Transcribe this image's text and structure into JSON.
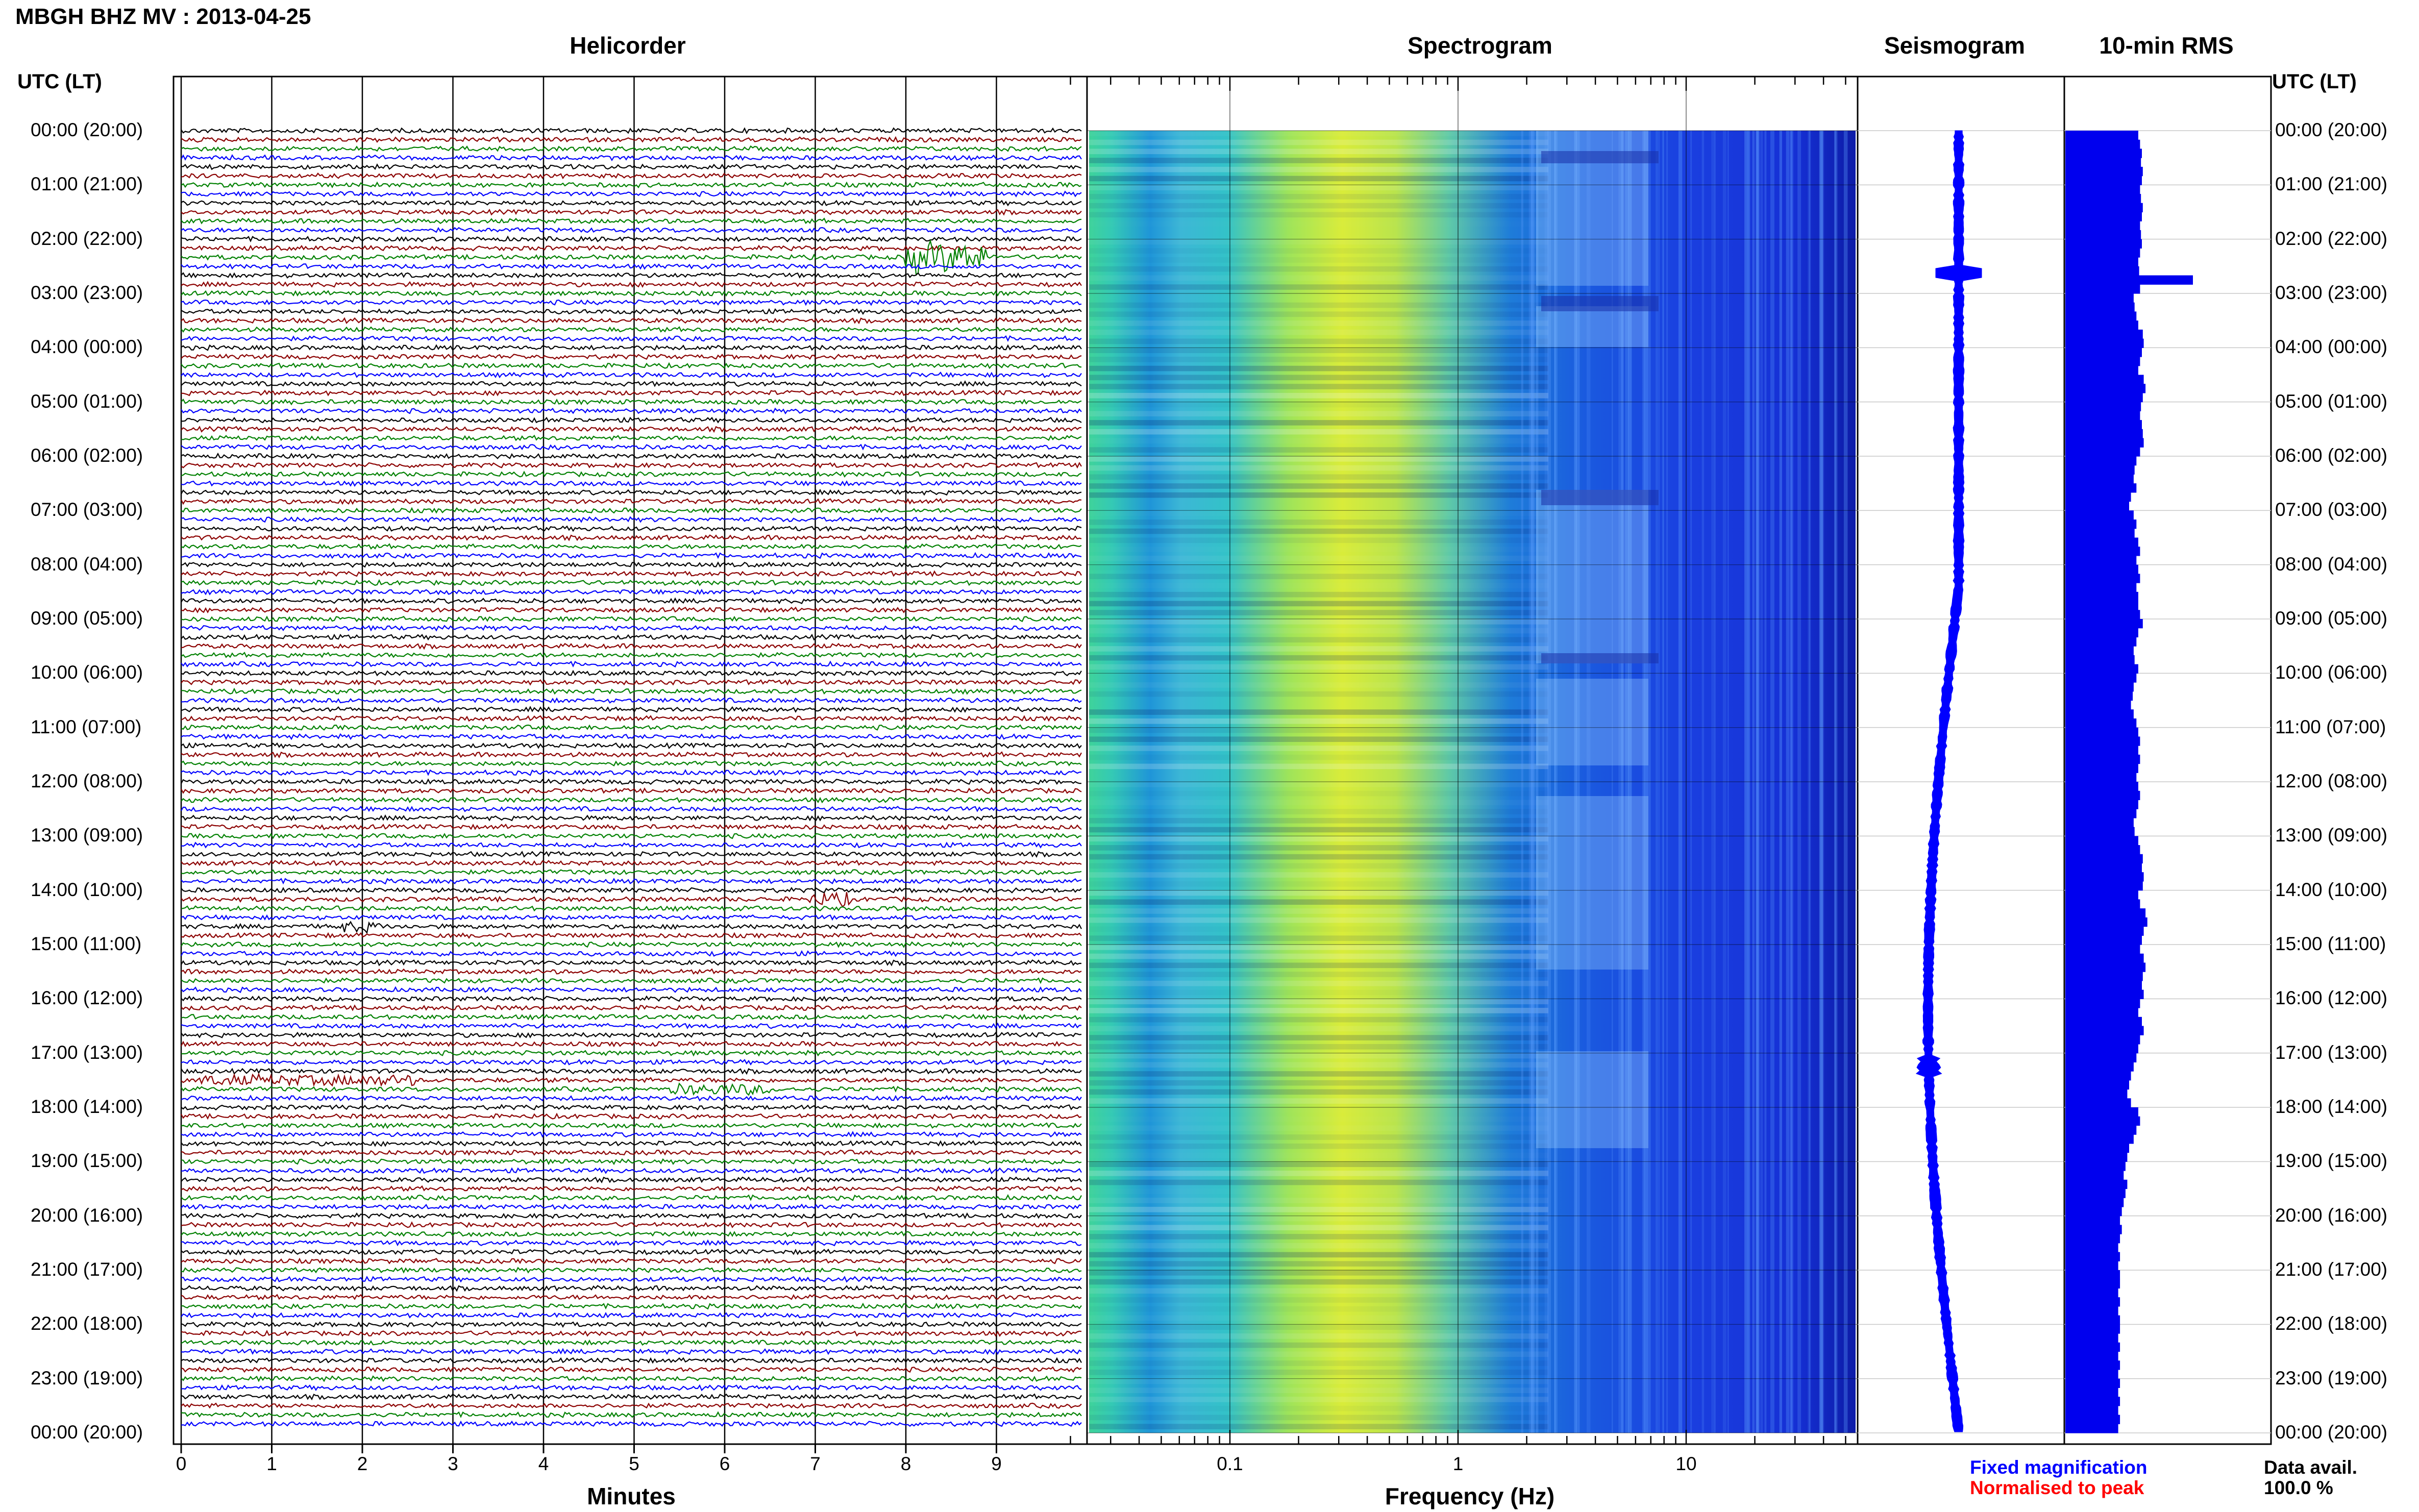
{
  "header": {
    "station_title": "MBGH BHZ MV : 2013-04-25"
  },
  "panels": {
    "helicorder": "Helicorder",
    "spectrogram": "Spectrogram",
    "seismogram": "Seismogram",
    "rms": "10-min RMS"
  },
  "axes": {
    "time_header_left": "UTC (LT)",
    "time_header_right": "UTC (LT)",
    "helicorder_xlabel": "Minutes",
    "spectrogram_xlabel": "Frequency (Hz)"
  },
  "legend": {
    "fixed": "Fixed magnification",
    "normalised": "Normalised to peak",
    "data_avail_label": "Data avail.",
    "data_avail_value": "100.0 %"
  },
  "colors": {
    "trace_cycle": [
      "#000000",
      "#8b0000",
      "#008000",
      "#0000ff"
    ],
    "rms_bar": "#0000ee",
    "seismogram": "#0000ff",
    "legend_fixed": "#0000ff",
    "legend_normalised": "#ff0000"
  },
  "chart_data": [
    {
      "type": "line",
      "name": "helicorder",
      "title": "Helicorder",
      "xlabel": "Minutes",
      "xlim": [
        0,
        10
      ],
      "x_ticks": [
        "0",
        "1",
        "2",
        "3",
        "4",
        "5",
        "6",
        "7",
        "8",
        "9"
      ],
      "y_tick_labels": [
        "00:00 (20:00)",
        "01:00 (21:00)",
        "02:00 (22:00)",
        "03:00 (23:00)",
        "04:00 (00:00)",
        "05:00 (01:00)",
        "06:00 (02:00)",
        "07:00 (03:00)",
        "08:00 (04:00)",
        "09:00 (05:00)",
        "10:00 (06:00)",
        "11:00 (07:00)",
        "12:00 (08:00)",
        "13:00 (09:00)",
        "14:00 (10:00)",
        "15:00 (11:00)",
        "16:00 (12:00)",
        "17:00 (13:00)",
        "18:00 (14:00)",
        "19:00 (15:00)",
        "20:00 (16:00)",
        "21:00 (17:00)",
        "22:00 (18:00)",
        "23:00 (19:00)",
        "00:00 (20:00)"
      ],
      "rows": 144,
      "minutes_per_row": 10,
      "events": [
        {
          "row": 14,
          "minute_start": 8.0,
          "minute_end": 8.9,
          "amplitude": 7
        },
        {
          "row": 85,
          "minute_start": 6.9,
          "minute_end": 7.4,
          "amplitude": 3
        },
        {
          "row": 88,
          "minute_start": 1.7,
          "minute_end": 2.2,
          "amplitude": 2.5
        },
        {
          "row": 105,
          "minute_start": 0.2,
          "minute_end": 2.6,
          "amplitude": 2.5
        },
        {
          "row": 106,
          "minute_start": 5.4,
          "minute_end": 6.5,
          "amplitude": 2.5
        }
      ]
    },
    {
      "type": "heatmap",
      "name": "spectrogram",
      "title": "Spectrogram",
      "xlabel": "Frequency (Hz)",
      "xscale": "log",
      "xlim": [
        0.02,
        50
      ],
      "x_ticks": [
        0.1,
        1,
        10
      ],
      "x_tick_labels": [
        "0.1",
        "1",
        "10"
      ],
      "ylim_hours": [
        0,
        24
      ]
    },
    {
      "type": "line",
      "name": "seismogram",
      "title": "Seismogram",
      "ylim_hours": [
        0,
        24
      ]
    },
    {
      "type": "bar",
      "name": "rms",
      "title": "10-min RMS",
      "orientation": "horizontal",
      "bins": 144,
      "values": [
        0.8,
        0.82,
        0.84,
        0.83,
        0.85,
        0.84,
        0.82,
        0.83,
        0.85,
        0.84,
        0.82,
        0.83,
        0.84,
        0.82,
        0.8,
        0.81,
        1.4,
        0.82,
        0.75,
        0.76,
        0.78,
        0.8,
        0.85,
        0.86,
        0.84,
        0.82,
        0.8,
        0.86,
        0.88,
        0.85,
        0.83,
        0.82,
        0.84,
        0.85,
        0.86,
        0.82,
        0.78,
        0.76,
        0.75,
        0.78,
        0.72,
        0.7,
        0.75,
        0.78,
        0.76,
        0.8,
        0.82,
        0.78,
        0.8,
        0.82,
        0.78,
        0.8,
        0.8,
        0.82,
        0.85,
        0.8,
        0.78,
        0.75,
        0.76,
        0.8,
        0.78,
        0.75,
        0.74,
        0.72,
        0.75,
        0.78,
        0.8,
        0.82,
        0.8,
        0.82,
        0.8,
        0.78,
        0.8,
        0.82,
        0.8,
        0.78,
        0.75,
        0.76,
        0.8,
        0.82,
        0.85,
        0.84,
        0.86,
        0.85,
        0.8,
        0.82,
        0.88,
        0.9,
        0.86,
        0.84,
        0.82,
        0.86,
        0.88,
        0.85,
        0.84,
        0.86,
        0.82,
        0.8,
        0.84,
        0.86,
        0.82,
        0.8,
        0.78,
        0.75,
        0.72,
        0.7,
        0.68,
        0.72,
        0.8,
        0.82,
        0.78,
        0.75,
        0.7,
        0.68,
        0.66,
        0.64,
        0.68,
        0.66,
        0.64,
        0.62,
        0.6,
        0.62,
        0.6,
        0.58,
        0.6,
        0.58,
        0.6,
        0.6,
        0.58,
        0.6,
        0.58,
        0.6,
        0.6,
        0.58,
        0.6,
        0.58,
        0.6,
        0.58,
        0.6,
        0.58,
        0.6,
        0.58,
        0.6,
        0.58
      ]
    }
  ]
}
